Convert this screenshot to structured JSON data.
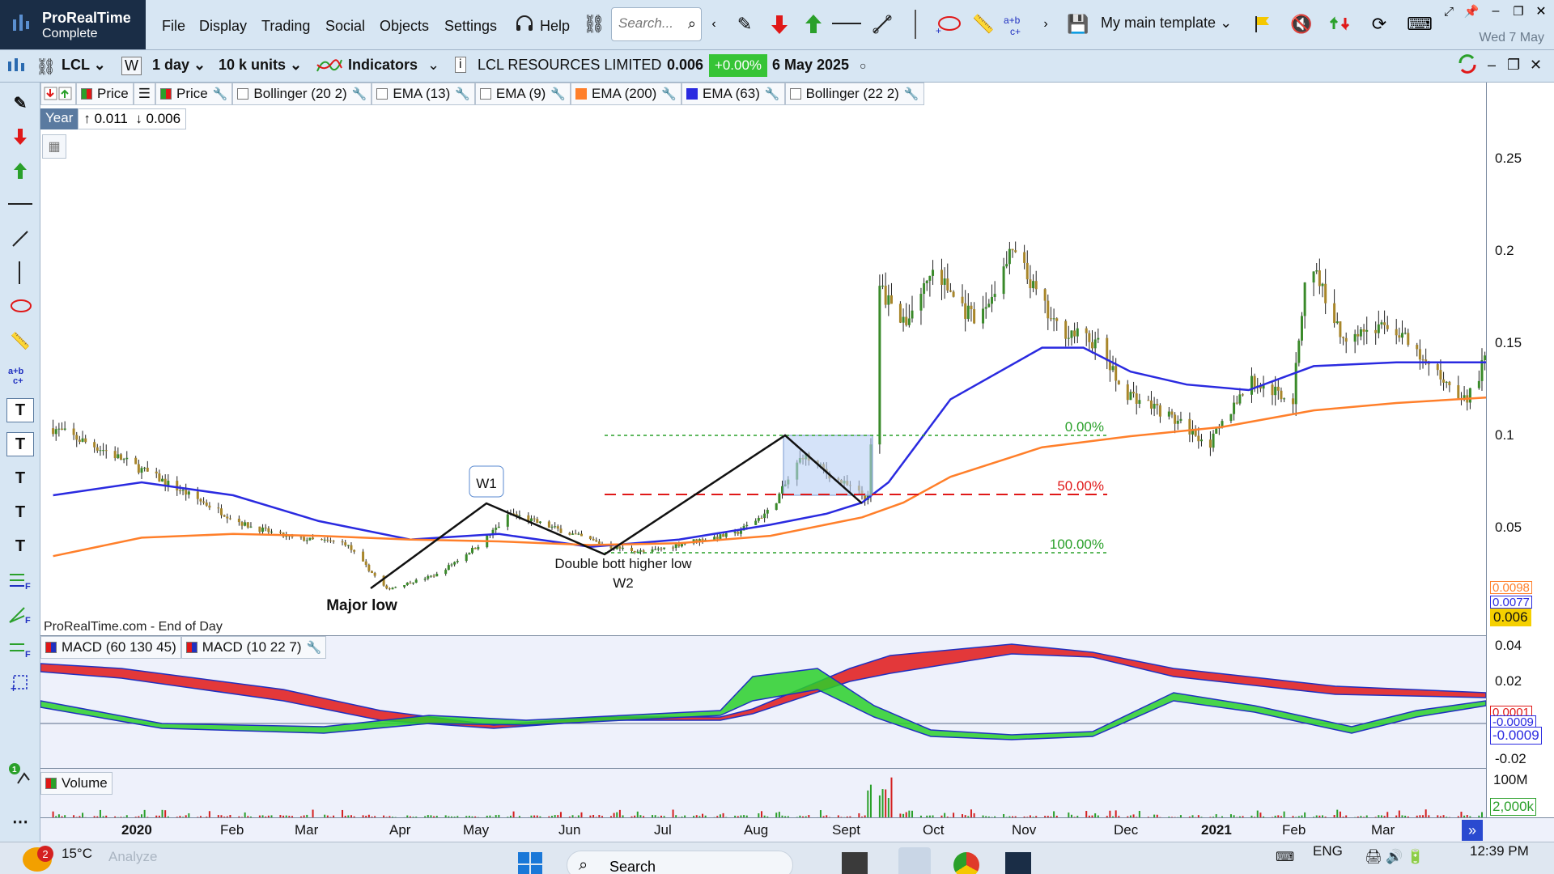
{
  "app": {
    "name": "ProRealTime",
    "edition": "Complete"
  },
  "menu": [
    "File",
    "Display",
    "Trading",
    "Social",
    "Objects",
    "Settings"
  ],
  "help_label": "Help",
  "search": {
    "placeholder": "Search..."
  },
  "template_label": "My main template",
  "top_date": "Wed 7 May",
  "toolbar": {
    "ticker": "LCL",
    "period_letter": "W",
    "timeframe": "1 day",
    "units": "10 k units",
    "indicators_label": "Indicators",
    "instrument_name": "LCL RESOURCES LIMITED",
    "last_price": "0.006",
    "change": "+0.00%",
    "date": "6 May 2025"
  },
  "legend": {
    "price_a": "Price",
    "price_b": "Price",
    "items": [
      "Bollinger (20 2)",
      "EMA (13)",
      "EMA (9)",
      "EMA (200)",
      "EMA (63)",
      "Bollinger (22 2)"
    ],
    "colors": {
      "ema200": "#ff7f2a",
      "ema63": "#2a2ae0",
      "up": "#3a8a2a",
      "down": "#d42020"
    }
  },
  "range_box": {
    "label": "Year",
    "high": "0.011",
    "low": "0.006"
  },
  "annotations": {
    "w1": "W1",
    "double_bottom": "Double bott higher low",
    "w2": "W2",
    "major_low": "Major low",
    "fib_0": "0.00%",
    "fib_50": "50.00%",
    "fib_100": "100.00%",
    "source": "ProRealTime.com - End of Day"
  },
  "price_axis": {
    "ticks": [
      "0.25",
      "0.2",
      "0.15",
      "0.1",
      "0.05"
    ],
    "tags": [
      "0.0098",
      "0.0077",
      "0.006"
    ]
  },
  "macd": {
    "legend": [
      "MACD (60 130 45)",
      "MACD (10 22 7)"
    ],
    "ticks": [
      "0.04",
      "0.02",
      "-0.02"
    ],
    "tags": [
      "0.0001",
      "-0.0009",
      "-0.0009"
    ]
  },
  "volume": {
    "legend": "Volume",
    "ticks": [
      "100M"
    ],
    "tag": "2,000k"
  },
  "dates": {
    "labels": [
      "2020",
      "Feb",
      "Mar",
      "Apr",
      "May",
      "Jun",
      "Jul",
      "Aug",
      "Sept",
      "Oct",
      "Nov",
      "Dec",
      "2021",
      "Feb",
      "Mar"
    ],
    "bold": [
      "2020",
      "2021"
    ]
  },
  "taskbar": {
    "weather": "15°C",
    "weather_badge": "2",
    "analyze": "Analyze",
    "search": "Search",
    "lang": "ENG",
    "time": "12:39 PM"
  },
  "chart_data": {
    "type": "candlestick",
    "instrument": "LCL RESOURCES LIMITED",
    "ylim": [
      0.01,
      0.27
    ],
    "series_lines": [
      {
        "name": "EMA (63)",
        "color": "#2a2ae0",
        "x": [
          "2019-12-02",
          "2020-01-01",
          "2020-02-01",
          "2020-03-01",
          "2020-04-01",
          "2020-05-01",
          "2020-06-01",
          "2020-07-01",
          "2020-08-01",
          "2020-08-20",
          "2020-09-01",
          "2020-09-10",
          "2020-10-01",
          "2020-11-01",
          "2020-11-15",
          "2020-12-01",
          "2020-12-20",
          "2021-01-10",
          "2021-02-01",
          "2021-03-01",
          "2021-04-01"
        ],
        "y": [
          0.068,
          0.075,
          0.068,
          0.054,
          0.044,
          0.047,
          0.04,
          0.044,
          0.052,
          0.058,
          0.064,
          0.075,
          0.12,
          0.148,
          0.148,
          0.135,
          0.128,
          0.125,
          0.138,
          0.14,
          0.14
        ]
      },
      {
        "name": "EMA (200)",
        "color": "#ff7f2a",
        "x": [
          "2019-12-02",
          "2020-01-01",
          "2020-02-01",
          "2020-03-01",
          "2020-04-01",
          "2020-05-01",
          "2020-06-01",
          "2020-07-01",
          "2020-08-01",
          "2020-09-01",
          "2020-09-15",
          "2020-10-01",
          "2020-11-01",
          "2020-12-01",
          "2021-01-01",
          "2021-02-01",
          "2021-03-01",
          "2021-04-01"
        ],
        "y": [
          0.035,
          0.045,
          0.047,
          0.046,
          0.044,
          0.043,
          0.041,
          0.042,
          0.046,
          0.056,
          0.064,
          0.078,
          0.094,
          0.1,
          0.105,
          0.114,
          0.118,
          0.121
        ]
      }
    ],
    "annotations": {
      "fib_levels": [
        {
          "label": "0.00%",
          "value": 0.1
        },
        {
          "label": "50.00%",
          "value": 0.0685
        },
        {
          "label": "100.00%",
          "value": 0.037
        }
      ]
    }
  }
}
